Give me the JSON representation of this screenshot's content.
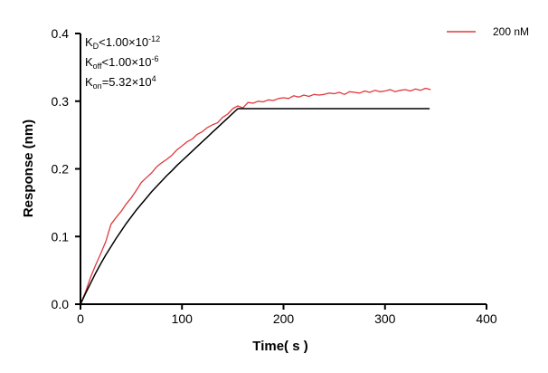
{
  "chart_data": {
    "type": "line",
    "xlabel": "Time【s】",
    "xlabel_parts": {
      "word": "Time",
      "open": "(",
      "unit": "s",
      "close": ")"
    },
    "ylabel": "Response (nm)",
    "xlim": [
      0,
      400
    ],
    "ylim": [
      0,
      0.4
    ],
    "xticks": [
      0,
      100,
      200,
      300,
      400
    ],
    "xtick_labels": [
      "0",
      "100",
      "200",
      "300",
      "400"
    ],
    "yticks": [
      0,
      0.1,
      0.2,
      0.3,
      0.4
    ],
    "ytick_labels": [
      "0.0",
      "0.1",
      "0.2",
      "0.3",
      "0.4"
    ],
    "grid": false,
    "legend_position": "top-right",
    "series": [
      {
        "name": "200 nM",
        "color": "#e0393e",
        "x": [
          0,
          5,
          10,
          15,
          20,
          25,
          30,
          35,
          40,
          45,
          50,
          55,
          60,
          65,
          70,
          75,
          80,
          85,
          90,
          95,
          100,
          105,
          110,
          115,
          120,
          125,
          130,
          135,
          140,
          145,
          150,
          155,
          160,
          165,
          170,
          175,
          180,
          185,
          190,
          195,
          200,
          205,
          210,
          215,
          220,
          225,
          230,
          235,
          240,
          245,
          250,
          255,
          260,
          265,
          270,
          275,
          280,
          285,
          290,
          295,
          300,
          305,
          310,
          315,
          320,
          325,
          330,
          335,
          340,
          345
        ],
        "y": [
          0.0,
          0.018,
          0.04,
          0.058,
          0.075,
          0.093,
          0.118,
          0.128,
          0.137,
          0.148,
          0.157,
          0.168,
          0.18,
          0.187,
          0.194,
          0.203,
          0.209,
          0.214,
          0.22,
          0.228,
          0.234,
          0.24,
          0.244,
          0.251,
          0.255,
          0.261,
          0.265,
          0.268,
          0.276,
          0.281,
          0.289,
          0.293,
          0.29,
          0.298,
          0.297,
          0.3,
          0.299,
          0.302,
          0.301,
          0.304,
          0.305,
          0.304,
          0.308,
          0.306,
          0.309,
          0.307,
          0.31,
          0.309,
          0.31,
          0.312,
          0.311,
          0.313,
          0.31,
          0.314,
          0.313,
          0.312,
          0.315,
          0.313,
          0.316,
          0.314,
          0.315,
          0.317,
          0.314,
          0.316,
          0.317,
          0.315,
          0.318,
          0.316,
          0.319,
          0.317
        ]
      },
      {
        "name": "",
        "color": "#000000",
        "x": [
          0,
          5,
          10,
          15,
          20,
          25,
          30,
          35,
          40,
          45,
          50,
          55,
          60,
          65,
          70,
          75,
          80,
          85,
          90,
          95,
          100,
          105,
          110,
          115,
          120,
          125,
          130,
          135,
          140,
          145,
          150,
          155,
          344
        ],
        "y": [
          0.0,
          0.016,
          0.031,
          0.046,
          0.06,
          0.073,
          0.085,
          0.097,
          0.108,
          0.119,
          0.129,
          0.139,
          0.148,
          0.157,
          0.166,
          0.174,
          0.182,
          0.19,
          0.197,
          0.205,
          0.212,
          0.219,
          0.226,
          0.233,
          0.24,
          0.247,
          0.254,
          0.261,
          0.268,
          0.275,
          0.282,
          0.289,
          0.289
        ]
      }
    ],
    "annotations": [
      {
        "main": "K",
        "sub": "D",
        "rel": "<",
        "value": "1.00×10",
        "exp": "-12"
      },
      {
        "main": "K",
        "sub": "off",
        "rel": "<",
        "value": "1.00×10",
        "exp": "-6"
      },
      {
        "main": "K",
        "sub": "on",
        "rel": "=",
        "value": "5.32×10",
        "exp": "4"
      }
    ]
  }
}
